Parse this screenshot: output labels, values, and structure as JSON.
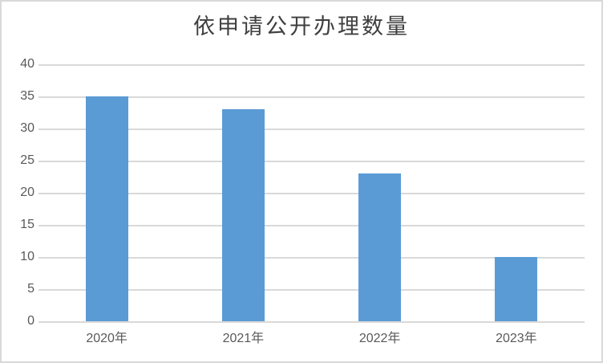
{
  "title": "依申请公开办理数量",
  "colors": {
    "bar": "#5b9bd5",
    "gridline": "#d9d9d9",
    "axis_line": "#d9d9d9",
    "tick_label": "#595959",
    "title_text": "#3f3f3f",
    "frame_border": "#d9d9d9",
    "background": "#ffffff"
  },
  "chart_data": {
    "type": "bar",
    "title": "依申请公开办理数量",
    "categories": [
      "2020年",
      "2021年",
      "2022年",
      "2023年"
    ],
    "values": [
      35,
      33,
      23,
      10
    ],
    "xlabel": "",
    "ylabel": "",
    "ylim": [
      0,
      40
    ],
    "ytick_step": 5,
    "yticks": [
      0,
      5,
      10,
      15,
      20,
      25,
      30,
      35,
      40
    ],
    "grid": true,
    "legend": false,
    "bar_color": "#5b9bd5",
    "series": [
      {
        "name": "依申请公开办理数量",
        "values": [
          35,
          33,
          23,
          10
        ]
      }
    ]
  }
}
